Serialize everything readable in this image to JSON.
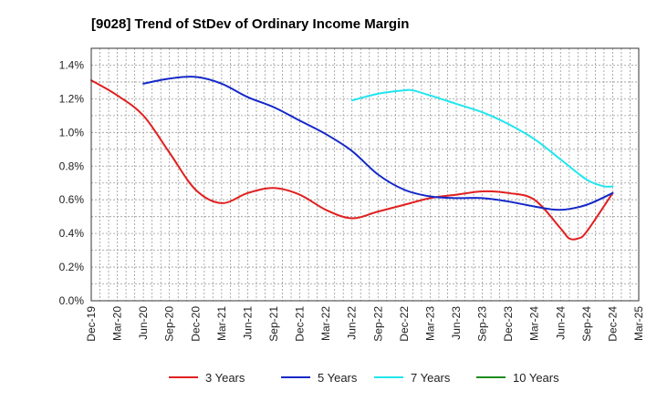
{
  "chart_data": {
    "type": "line",
    "title": "[9028]  Trend of StDev of Ordinary Income Margin",
    "xlabel": "",
    "ylabel": "",
    "x_tick_labels": [
      "Dec-19",
      "Mar-20",
      "Jun-20",
      "Sep-20",
      "Dec-20",
      "Mar-21",
      "Jun-21",
      "Sep-21",
      "Dec-21",
      "Mar-22",
      "Jun-22",
      "Sep-22",
      "Dec-22",
      "Mar-23",
      "Jun-23",
      "Sep-23",
      "Dec-23",
      "Mar-24",
      "Jun-24",
      "Sep-24",
      "Dec-24",
      "Mar-25"
    ],
    "y_tick_labels": [
      "0.0%",
      "0.2%",
      "0.4%",
      "0.6%",
      "0.8%",
      "1.0%",
      "1.2%",
      "1.4%"
    ],
    "ylim": [
      0,
      1.5
    ],
    "y_unit": "%",
    "grid": true,
    "legend_position": "bottom",
    "series": [
      {
        "name": "3 Years",
        "color": "#e02020",
        "points": [
          [
            "Dec-19",
            1.31
          ],
          [
            "Mar-20",
            1.22
          ],
          [
            "Jun-20",
            1.1
          ],
          [
            "Sep-20",
            0.88
          ],
          [
            "Dec-20",
            0.66
          ],
          [
            "Mar-21",
            0.58
          ],
          [
            "Jun-21",
            0.64
          ],
          [
            "Sep-21",
            0.67
          ],
          [
            "Dec-21",
            0.63
          ],
          [
            "Mar-22",
            0.54
          ],
          [
            "Jun-22",
            0.49
          ],
          [
            "Sep-22",
            0.53
          ],
          [
            "Dec-22",
            0.57
          ],
          [
            "Mar-23",
            0.61
          ],
          [
            "Jun-23",
            0.63
          ],
          [
            "Sep-23",
            0.65
          ],
          [
            "Dec-23",
            0.64
          ],
          [
            "Mar-24",
            0.6
          ],
          [
            "Jun-24",
            0.43
          ],
          [
            "Jul-24",
            0.37
          ],
          [
            "Aug-24",
            0.37
          ],
          [
            "Sep-24",
            0.41
          ],
          [
            "Dec-24",
            0.64
          ]
        ]
      },
      {
        "name": "5 Years",
        "color": "#1428c8",
        "points": [
          [
            "Jun-20",
            1.29
          ],
          [
            "Sep-20",
            1.32
          ],
          [
            "Dec-20",
            1.33
          ],
          [
            "Mar-21",
            1.29
          ],
          [
            "Jun-21",
            1.21
          ],
          [
            "Sep-21",
            1.15
          ],
          [
            "Dec-21",
            1.07
          ],
          [
            "Mar-22",
            0.99
          ],
          [
            "Jun-22",
            0.89
          ],
          [
            "Sep-22",
            0.75
          ],
          [
            "Dec-22",
            0.66
          ],
          [
            "Mar-23",
            0.62
          ],
          [
            "Jun-23",
            0.61
          ],
          [
            "Sep-23",
            0.61
          ],
          [
            "Dec-23",
            0.59
          ],
          [
            "Mar-24",
            0.56
          ],
          [
            "Jun-24",
            0.54
          ],
          [
            "Sep-24",
            0.57
          ],
          [
            "Dec-24",
            0.64
          ]
        ]
      },
      {
        "name": "7 Years",
        "color": "#20e6ee",
        "points": [
          [
            "Jun-22",
            1.19
          ],
          [
            "Sep-22",
            1.23
          ],
          [
            "Dec-22",
            1.25
          ],
          [
            "Jan-23",
            1.25
          ],
          [
            "Mar-23",
            1.22
          ],
          [
            "Jun-23",
            1.17
          ],
          [
            "Sep-23",
            1.12
          ],
          [
            "Dec-23",
            1.05
          ],
          [
            "Mar-24",
            0.96
          ],
          [
            "Jun-24",
            0.84
          ],
          [
            "Sep-24",
            0.72
          ],
          [
            "Nov-24",
            0.68
          ],
          [
            "Dec-24",
            0.68
          ]
        ]
      },
      {
        "name": "10 Years",
        "color": "#1e8c1e",
        "points": []
      }
    ]
  }
}
